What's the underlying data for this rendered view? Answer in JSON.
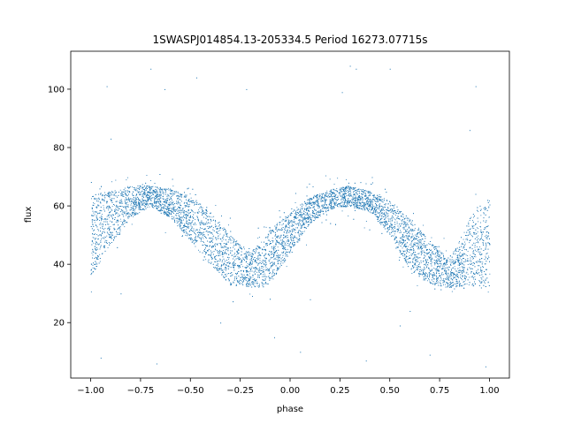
{
  "chart_data": {
    "type": "scatter",
    "title": "1SWASPJ014854.13-205334.5 Period 16273.07715s",
    "xlabel": "phase",
    "ylabel": "flux",
    "xlim": [
      -1.1,
      1.1
    ],
    "ylim": [
      1,
      113
    ],
    "xticks": [
      -1.0,
      -0.75,
      -0.5,
      -0.25,
      0.0,
      0.25,
      0.5,
      0.75,
      1.0
    ],
    "xtick_labels": [
      "−1.00",
      "−0.75",
      "−0.50",
      "−0.25",
      "0.00",
      "0.25",
      "0.50",
      "0.75",
      "1.00"
    ],
    "yticks": [
      20,
      40,
      60,
      80,
      100
    ],
    "ytick_labels": [
      "20",
      "40",
      "60",
      "80",
      "100"
    ],
    "grid": false,
    "point_color": "#1f77b4",
    "phase_range": [
      -1.0,
      1.0
    ],
    "series": [
      {
        "band_upper": {
          "x": [
            -1.0,
            -0.9,
            -0.8,
            -0.7,
            -0.6,
            -0.5,
            -0.4,
            -0.3,
            -0.2,
            -0.1,
            0.0,
            0.1,
            0.2,
            0.3,
            0.4,
            0.5,
            0.6,
            0.7,
            0.8,
            0.9,
            1.0
          ],
          "y": [
            64,
            65,
            67,
            67,
            66,
            63,
            58,
            50,
            44,
            52,
            58,
            63,
            66,
            67,
            65,
            62,
            56,
            48,
            42,
            56,
            64
          ]
        },
        "band_lower": {
          "x": [
            -1.0,
            -0.9,
            -0.8,
            -0.7,
            -0.6,
            -0.5,
            -0.4,
            -0.3,
            -0.2,
            -0.1,
            0.0,
            0.1,
            0.2,
            0.3,
            0.4,
            0.5,
            0.6,
            0.7,
            0.8,
            0.9,
            1.0
          ],
          "y": [
            36,
            47,
            56,
            60,
            56,
            48,
            40,
            33,
            32,
            33,
            44,
            54,
            59,
            60,
            58,
            50,
            38,
            33,
            32,
            33,
            32
          ]
        },
        "outliers": [
          [
            -0.92,
            101
          ],
          [
            -0.9,
            83
          ],
          [
            -0.63,
            100
          ],
          [
            -0.7,
            107
          ],
          [
            -0.47,
            104
          ],
          [
            -0.22,
            100
          ],
          [
            0.3,
            108
          ],
          [
            0.33,
            107
          ],
          [
            0.26,
            99
          ],
          [
            0.5,
            107
          ],
          [
            0.93,
            101
          ],
          [
            0.9,
            86
          ],
          [
            -0.95,
            8
          ],
          [
            -0.67,
            6
          ],
          [
            -0.08,
            15
          ],
          [
            0.05,
            10
          ],
          [
            0.38,
            7
          ],
          [
            0.7,
            9
          ],
          [
            0.98,
            5
          ],
          [
            -0.35,
            20
          ],
          [
            0.55,
            19
          ],
          [
            -0.85,
            30
          ],
          [
            0.1,
            28
          ],
          [
            0.6,
            24
          ]
        ]
      }
    ]
  }
}
